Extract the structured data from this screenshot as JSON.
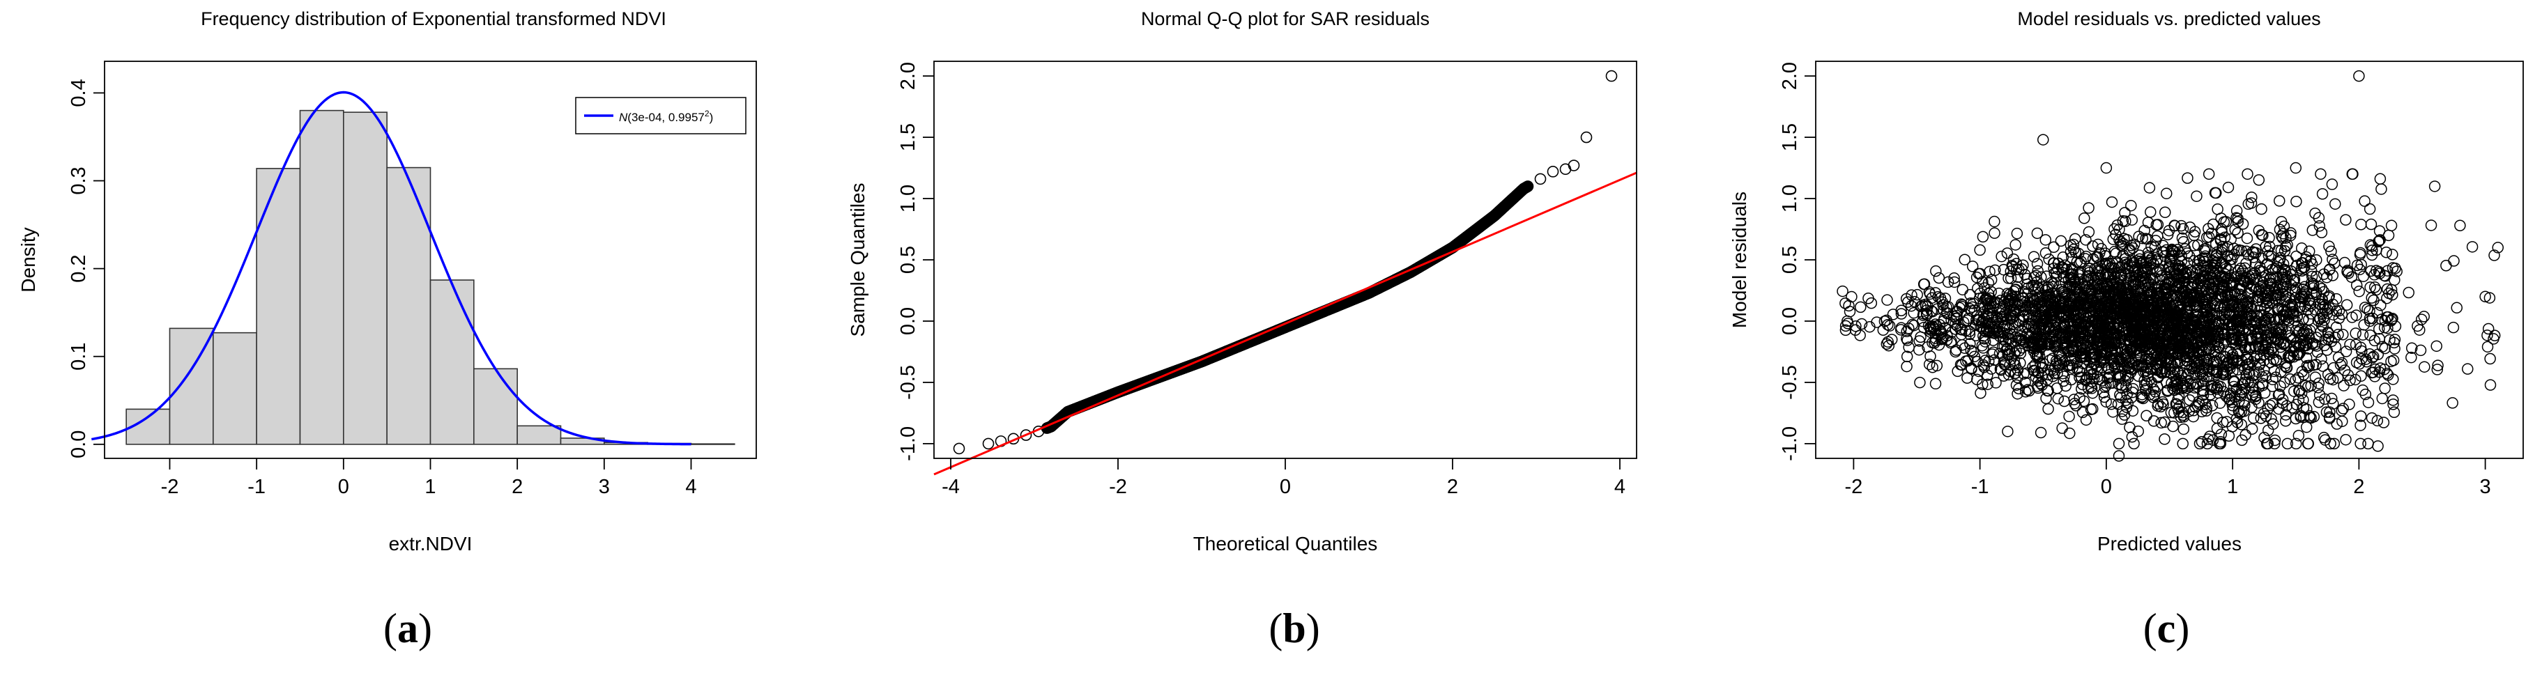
{
  "chart_data": [
    {
      "panel_label_open": "(",
      "panel_letter": "a",
      "panel_label_close": ")",
      "type": "bar",
      "title": "Frequency distribution of Exponential transformed NDVI",
      "xlabel": "extr.NDVI",
      "ylabel": "Density",
      "xlim": [
        -2.75,
        4.75
      ],
      "ylim": [
        -0.016,
        0.436
      ],
      "xticks": [
        -2,
        -1,
        0,
        1,
        2,
        3,
        4
      ],
      "xtick_labels": [
        "-2",
        "-1",
        "0",
        "1",
        "2",
        "3",
        "4"
      ],
      "yticks": [
        0.0,
        0.1,
        0.2,
        0.3,
        0.4
      ],
      "ytick_labels": [
        "0.0",
        "0.1",
        "0.2",
        "0.3",
        "0.4"
      ],
      "bins": [
        {
          "x0": -2.5,
          "x1": -2.0,
          "density": 0.04
        },
        {
          "x0": -2.0,
          "x1": -1.5,
          "density": 0.132
        },
        {
          "x0": -1.5,
          "x1": -1.0,
          "density": 0.127
        },
        {
          "x0": -1.0,
          "x1": -0.5,
          "density": 0.314
        },
        {
          "x0": -0.5,
          "x1": 0.0,
          "density": 0.38
        },
        {
          "x0": 0.0,
          "x1": 0.5,
          "density": 0.378
        },
        {
          "x0": 0.5,
          "x1": 1.0,
          "density": 0.315
        },
        {
          "x0": 1.0,
          "x1": 1.5,
          "density": 0.187
        },
        {
          "x0": 1.5,
          "x1": 2.0,
          "density": 0.086
        },
        {
          "x0": 2.0,
          "x1": 2.5,
          "density": 0.021
        },
        {
          "x0": 2.5,
          "x1": 3.0,
          "density": 0.007
        },
        {
          "x0": 3.0,
          "x1": 3.5,
          "density": 0.002
        },
        {
          "x0": 3.5,
          "x1": 4.0,
          "density": 0.001
        },
        {
          "x0": 4.0,
          "x1": 4.5,
          "density": 0.0005
        }
      ],
      "bar_fill": "#d3d3d3",
      "normal_curve": {
        "mean": 0.0003,
        "sd": 0.9957,
        "x_range": [
          -2.9,
          4.0
        ],
        "color": "#0000ff"
      },
      "legend": {
        "position": "top-right",
        "entries": [
          {
            "italic": "N",
            "text": "(3e-04, 0.9957",
            "sup": "2",
            "close": ")",
            "color": "#0000ff"
          }
        ]
      }
    },
    {
      "panel_label_open": "(",
      "panel_letter": "b",
      "panel_label_close": ")",
      "type": "scatter",
      "title": "Normal Q-Q plot for SAR residuals",
      "xlabel": "Theoretical Quantiles",
      "ylabel": "Sample Quantiles",
      "xlim": [
        -4.2,
        4.2
      ],
      "ylim": [
        -1.12,
        2.12
      ],
      "xticks": [
        -4,
        -2,
        0,
        2,
        4
      ],
      "xtick_labels": [
        "-4",
        "-2",
        "0",
        "2",
        "4"
      ],
      "yticks": [
        -1.0,
        -0.5,
        0.0,
        0.5,
        1.0,
        1.5,
        2.0
      ],
      "ytick_labels": [
        "-1.0",
        "-0.5",
        "0.0",
        "0.5",
        "1.0",
        "1.5",
        "2.0"
      ],
      "qq_points": [
        [
          -3.9,
          -1.04
        ],
        [
          -3.55,
          -1.0
        ],
        [
          -3.4,
          -0.98
        ],
        [
          -3.25,
          -0.96
        ],
        [
          -3.1,
          -0.93
        ],
        [
          -2.95,
          -0.9
        ],
        [
          -2.8,
          -0.86
        ],
        [
          -2.6,
          -0.74
        ],
        [
          -2.0,
          -0.58
        ],
        [
          -1.0,
          -0.33
        ],
        [
          0.0,
          -0.05
        ],
        [
          1.0,
          0.23
        ],
        [
          1.5,
          0.4
        ],
        [
          2.0,
          0.6
        ],
        [
          2.5,
          0.86
        ],
        [
          2.85,
          1.08
        ],
        [
          3.05,
          1.16
        ],
        [
          3.2,
          1.22
        ],
        [
          3.35,
          1.24
        ],
        [
          3.45,
          1.27
        ],
        [
          3.6,
          1.5
        ],
        [
          3.9,
          2.0
        ]
      ],
      "reference_line": {
        "intercept": -0.02,
        "slope": 0.293,
        "color": "#ff0000"
      }
    },
    {
      "panel_label_open": "(",
      "panel_letter": "c",
      "panel_label_close": ")",
      "type": "scatter",
      "title": "Model residuals vs. predicted values",
      "xlabel": "Predicted values",
      "ylabel": "Model residuals",
      "xlim": [
        -2.3,
        3.3
      ],
      "ylim": [
        -1.12,
        2.12
      ],
      "xticks": [
        -2,
        -1,
        0,
        1,
        2,
        3
      ],
      "xtick_labels": [
        "-2",
        "-1",
        "0",
        "1",
        "2",
        "3"
      ],
      "yticks": [
        -1.0,
        -0.5,
        0.0,
        0.5,
        1.0,
        1.5,
        2.0
      ],
      "ytick_labels": [
        "-1.0",
        "-0.5",
        "0.0",
        "0.5",
        "1.0",
        "1.5",
        "2.0"
      ],
      "cloud": {
        "x_range": [
          -2.1,
          3.2
        ],
        "center_x": 0.4,
        "residual_mean": 0.0
      },
      "notable_points": [
        [
          2.0,
          2.0
        ],
        [
          -0.5,
          1.48
        ],
        [
          0.0,
          1.25
        ],
        [
          1.5,
          1.25
        ],
        [
          2.6,
          1.1
        ],
        [
          2.8,
          0.78
        ],
        [
          3.1,
          0.6
        ],
        [
          3.0,
          0.2
        ],
        [
          2.15,
          -1.02
        ],
        [
          0.1,
          -1.1
        ],
        [
          -1.0,
          0.58
        ],
        [
          -2.05,
          0.0
        ],
        [
          1.25,
          -0.95
        ]
      ]
    }
  ]
}
